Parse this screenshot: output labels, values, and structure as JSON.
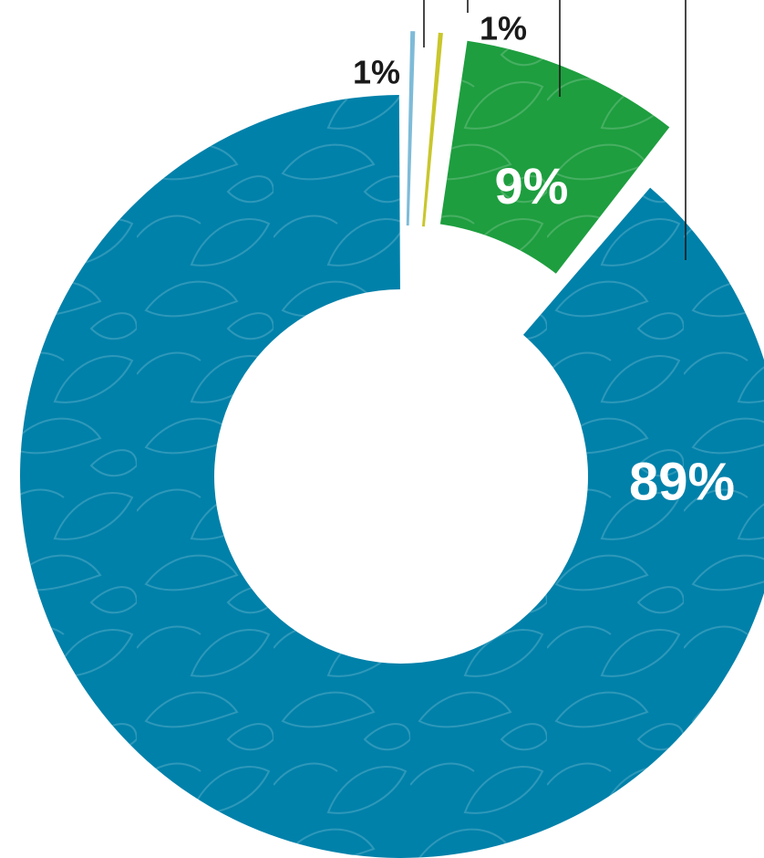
{
  "chart_data": {
    "type": "pie",
    "variant": "donut",
    "title": "",
    "slices": [
      {
        "value": 89,
        "label": "89%",
        "color": "#0081AA"
      },
      {
        "value": 1,
        "label": "1%",
        "color": "#7EBBD8"
      },
      {
        "value": 1,
        "label": "1%",
        "color": "#C9C62C"
      },
      {
        "value": 9,
        "label": "9%",
        "color": "#1E9E3F"
      }
    ],
    "legend": "none"
  }
}
